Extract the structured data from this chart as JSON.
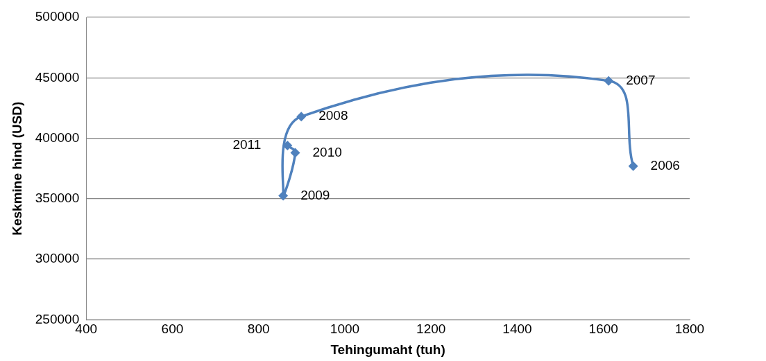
{
  "chart_data": {
    "type": "scatter",
    "xlabel": "Tehingumaht (tuh)",
    "ylabel": "Keskmine hind (USD)",
    "series": [
      {
        "type": "line",
        "color": "#4f81bd",
        "x": [
          1669,
          1612,
          899,
          857,
          885,
          867
        ],
        "values": [
          377000,
          447500,
          418000,
          352500,
          388000,
          394000
        ]
      }
    ],
    "xlim": [
      400,
      1800
    ],
    "xticks": [
      400,
      600,
      800,
      1000,
      1200,
      1400,
      1600,
      1800
    ],
    "ylim": [
      250000,
      500000
    ],
    "yticks": [
      250000,
      300000,
      350000,
      400000,
      450000,
      500000
    ],
    "grid": "y",
    "legend": false,
    "marker": "diamond",
    "line_style": "solid",
    "annotations": [
      {
        "text": "2006",
        "x": 1669,
        "y": 377000
      },
      {
        "text": "2007",
        "x": 1612,
        "y": 447500
      },
      {
        "text": "2008",
        "x": 899,
        "y": 418000
      },
      {
        "text": "2009",
        "x": 857,
        "y": 352500
      },
      {
        "text": "2010",
        "x": 885,
        "y": 388000
      },
      {
        "text": "2011",
        "x": 867,
        "y": 394000
      }
    ]
  }
}
